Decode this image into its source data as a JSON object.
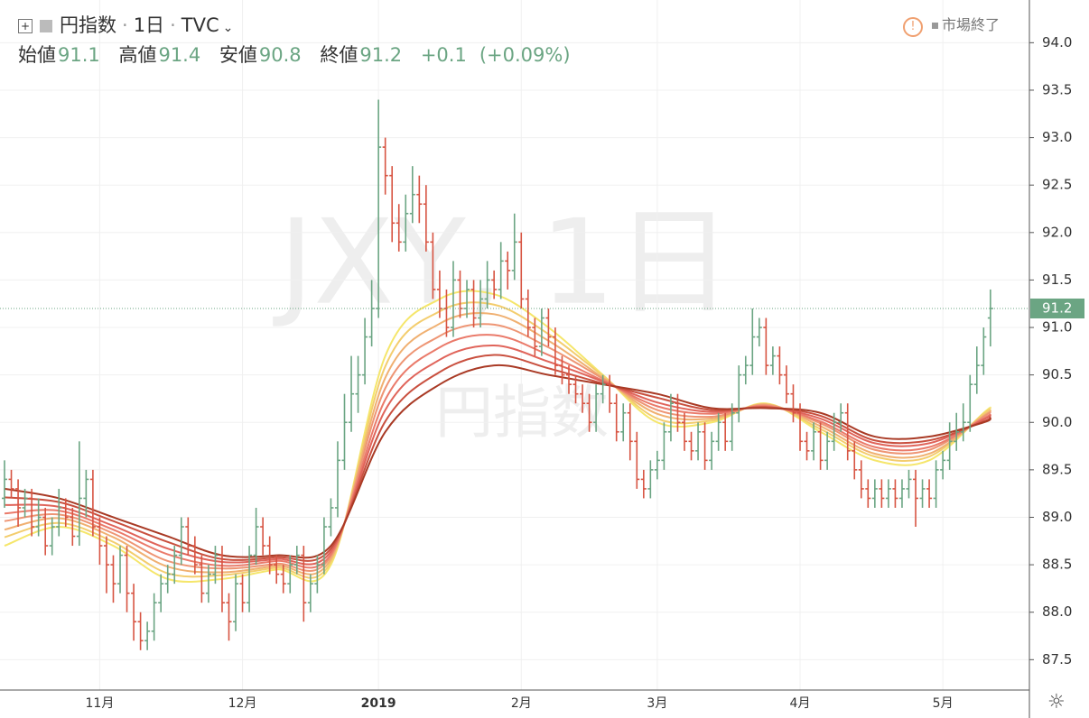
{
  "header": {
    "symbol": "円指数",
    "interval": "1日",
    "exchange": "TVC",
    "status": "市場終了",
    "open_label": "始値",
    "high_label": "高値",
    "low_label": "安値",
    "close_label": "終値",
    "change": "+0.1",
    "change_percent": "(+0.09%)"
  },
  "chart_data": {
    "type": "ohlc",
    "watermark": "JXY, 1日",
    "watermark_subtitle": "円指数",
    "up_color": "#6ba583",
    "down_color": "#d75442",
    "grid": true,
    "ylim": [
      87.18,
      94.45
    ],
    "yticks": [
      {
        "value": 87.5,
        "label": "87.5"
      },
      {
        "value": 88,
        "label": "88.0"
      },
      {
        "value": 88.5,
        "label": "88.5"
      },
      {
        "value": 89,
        "label": "89.0"
      },
      {
        "value": 89.5,
        "label": "89.5"
      },
      {
        "value": 90,
        "label": "90.0"
      },
      {
        "value": 90.5,
        "label": "90.5"
      },
      {
        "value": 91,
        "label": "91.0"
      },
      {
        "value": 91.5,
        "label": "91.5"
      },
      {
        "value": 92,
        "label": "92.0"
      },
      {
        "value": 92.5,
        "label": "92.5"
      },
      {
        "value": 93,
        "label": "93.0"
      },
      {
        "value": 93.5,
        "label": "93.5"
      },
      {
        "value": 94,
        "label": "94.0"
      }
    ],
    "categories": [
      null,
      null,
      null,
      null,
      null,
      null,
      null,
      null,
      null,
      null,
      null,
      null,
      null,
      null,
      "11月",
      null,
      null,
      null,
      null,
      null,
      null,
      null,
      null,
      null,
      null,
      null,
      null,
      null,
      null,
      null,
      null,
      null,
      null,
      null,
      null,
      "12月",
      null,
      null,
      null,
      null,
      null,
      null,
      null,
      null,
      null,
      null,
      null,
      null,
      null,
      null,
      null,
      null,
      null,
      null,
      null,
      "2019",
      null,
      null,
      null,
      null,
      null,
      null,
      null,
      null,
      null,
      null,
      null,
      null,
      null,
      null,
      null,
      null,
      null,
      null,
      null,
      null,
      "2月",
      null,
      null,
      null,
      null,
      null,
      null,
      null,
      null,
      null,
      null,
      null,
      null,
      null,
      null,
      null,
      null,
      null,
      null,
      null,
      "3月",
      null,
      null,
      null,
      null,
      null,
      null,
      null,
      null,
      null,
      null,
      null,
      null,
      null,
      null,
      null,
      null,
      null,
      null,
      null,
      null,
      "4月",
      null,
      null,
      null,
      null,
      null,
      null,
      null,
      null,
      null,
      null,
      null,
      null,
      null,
      null,
      null,
      null,
      null,
      null,
      null,
      null,
      "5月",
      null,
      null,
      null,
      null,
      null,
      null,
      null
    ],
    "ohlc": [
      [
        89.2,
        89.6,
        89.1,
        89.4
      ],
      [
        89.4,
        89.5,
        89.2,
        89.3
      ],
      [
        89.3,
        89.4,
        88.9,
        89.1
      ],
      [
        89.1,
        89.3,
        89.0,
        89.2
      ],
      [
        89.2,
        89.3,
        88.8,
        88.9
      ],
      [
        88.9,
        89.2,
        88.8,
        89.0
      ],
      [
        89.0,
        89.1,
        88.6,
        88.7
      ],
      [
        88.7,
        89.0,
        88.6,
        88.9
      ],
      [
        88.9,
        89.3,
        88.8,
        89.1
      ],
      [
        89.1,
        89.2,
        88.9,
        89.0
      ],
      [
        89.0,
        89.1,
        88.7,
        88.8
      ],
      [
        88.8,
        89.8,
        88.7,
        89.2
      ],
      [
        89.2,
        89.5,
        89.0,
        89.4
      ],
      [
        89.4,
        89.5,
        88.8,
        88.9
      ],
      [
        88.9,
        89.0,
        88.5,
        88.7
      ],
      [
        88.7,
        88.8,
        88.2,
        88.5
      ],
      [
        88.5,
        88.6,
        88.1,
        88.3
      ],
      [
        88.3,
        88.7,
        88.2,
        88.6
      ],
      [
        88.6,
        88.7,
        88.0,
        88.2
      ],
      [
        88.2,
        88.3,
        87.7,
        87.9
      ],
      [
        87.9,
        88.0,
        87.6,
        87.7
      ],
      [
        87.7,
        87.9,
        87.6,
        87.8
      ],
      [
        87.8,
        88.2,
        87.7,
        88.1
      ],
      [
        88.1,
        88.4,
        88.0,
        88.3
      ],
      [
        88.3,
        88.5,
        88.2,
        88.4
      ],
      [
        88.4,
        88.7,
        88.3,
        88.6
      ],
      [
        88.6,
        89.0,
        88.5,
        88.9
      ],
      [
        88.9,
        89.0,
        88.6,
        88.7
      ],
      [
        88.7,
        88.8,
        88.4,
        88.5
      ],
      [
        88.5,
        88.6,
        88.1,
        88.2
      ],
      [
        88.2,
        88.5,
        88.1,
        88.4
      ],
      [
        88.4,
        88.7,
        88.3,
        88.6
      ],
      [
        88.6,
        88.7,
        88.0,
        88.1
      ],
      [
        88.1,
        88.2,
        87.7,
        87.9
      ],
      [
        87.9,
        88.4,
        87.8,
        88.3
      ],
      [
        88.3,
        88.4,
        88.0,
        88.1
      ],
      [
        88.1,
        88.7,
        88.0,
        88.6
      ],
      [
        88.6,
        89.1,
        88.5,
        88.9
      ],
      [
        88.9,
        89.0,
        88.6,
        88.7
      ],
      [
        88.7,
        88.8,
        88.4,
        88.5
      ],
      [
        88.5,
        88.6,
        88.3,
        88.4
      ],
      [
        88.4,
        88.5,
        88.2,
        88.3
      ],
      [
        88.3,
        88.6,
        88.2,
        88.5
      ],
      [
        88.5,
        88.7,
        88.4,
        88.6
      ],
      [
        88.6,
        88.7,
        87.9,
        88.1
      ],
      [
        88.1,
        88.4,
        88.0,
        88.3
      ],
      [
        88.3,
        88.6,
        88.2,
        88.5
      ],
      [
        88.5,
        89.0,
        88.4,
        88.9
      ],
      [
        88.9,
        89.2,
        88.8,
        89.1
      ],
      [
        89.1,
        89.8,
        89.0,
        89.6
      ],
      [
        89.6,
        90.3,
        89.5,
        90.0
      ],
      [
        90.0,
        90.7,
        89.9,
        90.3
      ],
      [
        90.3,
        90.7,
        90.1,
        90.5
      ],
      [
        90.5,
        91.1,
        90.4,
        90.9
      ],
      [
        90.9,
        91.5,
        90.8,
        91.2
      ],
      [
        91.2,
        93.4,
        91.1,
        92.9
      ],
      [
        92.9,
        93.0,
        92.4,
        92.6
      ],
      [
        92.6,
        92.7,
        91.9,
        92.1
      ],
      [
        92.1,
        92.3,
        91.8,
        91.9
      ],
      [
        91.9,
        92.4,
        91.8,
        92.2
      ],
      [
        92.2,
        92.7,
        92.1,
        92.4
      ],
      [
        92.4,
        92.6,
        92.1,
        92.3
      ],
      [
        92.3,
        92.5,
        91.8,
        91.9
      ],
      [
        91.9,
        92.0,
        91.3,
        91.4
      ],
      [
        91.4,
        91.6,
        91.1,
        91.2
      ],
      [
        91.2,
        91.4,
        90.9,
        91.0
      ],
      [
        91.0,
        91.7,
        90.9,
        91.5
      ],
      [
        91.5,
        91.6,
        91.1,
        91.2
      ],
      [
        91.2,
        91.5,
        91.1,
        91.4
      ],
      [
        91.4,
        91.5,
        91.0,
        91.1
      ],
      [
        91.1,
        91.5,
        91.0,
        91.3
      ],
      [
        91.3,
        91.7,
        91.2,
        91.5
      ],
      [
        91.5,
        91.6,
        91.3,
        91.4
      ],
      [
        91.4,
        91.9,
        91.3,
        91.7
      ],
      [
        91.7,
        91.8,
        91.4,
        91.6
      ],
      [
        91.6,
        92.2,
        91.5,
        91.9
      ],
      [
        91.9,
        92.0,
        91.2,
        91.3
      ],
      [
        91.3,
        91.4,
        90.9,
        91.0
      ],
      [
        91.0,
        91.1,
        90.7,
        90.8
      ],
      [
        90.8,
        91.2,
        90.7,
        91.1
      ],
      [
        91.1,
        91.2,
        90.8,
        90.9
      ],
      [
        90.9,
        91.0,
        90.5,
        90.6
      ],
      [
        90.6,
        90.7,
        90.4,
        90.5
      ],
      [
        90.5,
        90.6,
        90.3,
        90.4
      ],
      [
        90.4,
        90.5,
        90.2,
        90.3
      ],
      [
        90.3,
        90.4,
        90.1,
        90.2
      ],
      [
        90.2,
        90.3,
        89.9,
        90.0
      ],
      [
        90.0,
        90.4,
        89.9,
        90.3
      ],
      [
        90.3,
        90.5,
        90.2,
        90.4
      ],
      [
        90.4,
        90.5,
        90.1,
        90.2
      ],
      [
        90.2,
        90.3,
        89.8,
        89.9
      ],
      [
        89.9,
        90.2,
        89.8,
        90.1
      ],
      [
        90.1,
        90.2,
        89.6,
        89.8
      ],
      [
        89.8,
        89.9,
        89.3,
        89.4
      ],
      [
        89.4,
        89.5,
        89.2,
        89.3
      ],
      [
        89.3,
        89.6,
        89.2,
        89.5
      ],
      [
        89.5,
        89.7,
        89.4,
        89.6
      ],
      [
        89.6,
        90.0,
        89.5,
        89.9
      ],
      [
        89.9,
        90.3,
        89.8,
        90.2
      ],
      [
        90.2,
        90.3,
        89.9,
        90.0
      ],
      [
        90.0,
        90.1,
        89.7,
        89.8
      ],
      [
        89.8,
        89.9,
        89.6,
        89.7
      ],
      [
        89.7,
        90.0,
        89.6,
        89.9
      ],
      [
        89.9,
        90.0,
        89.5,
        89.6
      ],
      [
        89.6,
        89.9,
        89.5,
        89.8
      ],
      [
        89.8,
        90.1,
        89.7,
        90.0
      ],
      [
        90.0,
        90.1,
        89.7,
        89.8
      ],
      [
        89.8,
        90.2,
        89.7,
        90.1
      ],
      [
        90.1,
        90.6,
        90.0,
        90.5
      ],
      [
        90.5,
        90.7,
        90.4,
        90.6
      ],
      [
        90.6,
        91.2,
        90.5,
        90.9
      ],
      [
        90.9,
        91.1,
        90.8,
        91.0
      ],
      [
        91.0,
        91.1,
        90.5,
        90.6
      ],
      [
        90.6,
        90.8,
        90.5,
        90.7
      ],
      [
        90.7,
        90.8,
        90.4,
        90.5
      ],
      [
        90.5,
        90.6,
        90.2,
        90.3
      ],
      [
        90.3,
        90.4,
        90.0,
        90.1
      ],
      [
        90.1,
        90.2,
        89.7,
        89.8
      ],
      [
        89.8,
        89.9,
        89.6,
        89.7
      ],
      [
        89.7,
        90.0,
        89.6,
        89.9
      ],
      [
        89.9,
        90.0,
        89.5,
        89.6
      ],
      [
        89.6,
        89.9,
        89.5,
        89.8
      ],
      [
        89.8,
        90.1,
        89.7,
        90.0
      ],
      [
        90.0,
        90.2,
        89.9,
        90.1
      ],
      [
        90.1,
        90.2,
        89.6,
        89.7
      ],
      [
        89.7,
        89.8,
        89.4,
        89.5
      ],
      [
        89.5,
        89.6,
        89.2,
        89.3
      ],
      [
        89.3,
        89.4,
        89.1,
        89.2
      ],
      [
        89.2,
        89.4,
        89.1,
        89.3
      ],
      [
        89.3,
        89.4,
        89.1,
        89.2
      ],
      [
        89.2,
        89.4,
        89.1,
        89.3
      ],
      [
        89.3,
        89.4,
        89.1,
        89.2
      ],
      [
        89.2,
        89.4,
        89.1,
        89.3
      ],
      [
        89.3,
        89.5,
        89.2,
        89.4
      ],
      [
        89.4,
        89.5,
        88.9,
        89.2
      ],
      [
        89.2,
        89.4,
        89.1,
        89.3
      ],
      [
        89.3,
        89.4,
        89.1,
        89.2
      ],
      [
        89.2,
        89.6,
        89.1,
        89.5
      ],
      [
        89.5,
        89.7,
        89.4,
        89.6
      ],
      [
        89.6,
        90.0,
        89.5,
        89.8
      ],
      [
        89.8,
        90.1,
        89.7,
        89.9
      ],
      [
        89.9,
        90.2,
        89.8,
        90.0
      ],
      [
        90.0,
        90.5,
        89.9,
        90.4
      ],
      [
        90.4,
        90.8,
        90.3,
        90.6
      ],
      [
        90.6,
        91.0,
        90.5,
        90.9
      ],
      [
        91.1,
        91.4,
        90.8,
        91.2
      ]
    ],
    "ribbon": {
      "x": [
        0,
        8,
        16,
        24,
        32,
        40,
        48,
        56,
        64,
        72,
        80,
        88,
        96,
        104,
        112,
        120,
        128,
        136,
        144,
        145
      ],
      "series": [
        {
          "color": "#f5e66b",
          "values": [
            88.7,
            88.9,
            88.7,
            88.35,
            88.35,
            88.45,
            88.5,
            90.7,
            91.3,
            91.35,
            91.0,
            90.5,
            90.0,
            90.0,
            90.2,
            89.9,
            89.6,
            89.6,
            90.1,
            90.15
          ]
        },
        {
          "color": "#f3cd6e",
          "values": [
            88.79,
            88.94,
            88.74,
            88.41,
            88.39,
            88.47,
            88.53,
            90.59,
            91.17,
            91.24,
            90.93,
            90.49,
            90.04,
            90.02,
            90.19,
            89.93,
            89.64,
            89.64,
            90.09,
            90.14
          ]
        },
        {
          "color": "#f0b071",
          "values": [
            88.87,
            88.99,
            88.79,
            88.48,
            88.42,
            88.49,
            88.56,
            90.47,
            91.04,
            91.14,
            90.86,
            90.47,
            90.09,
            90.04,
            90.19,
            89.96,
            89.67,
            89.67,
            90.07,
            90.12
          ]
        },
        {
          "color": "#ee9574",
          "values": [
            88.96,
            89.03,
            88.83,
            88.54,
            88.46,
            88.51,
            88.59,
            90.36,
            90.91,
            91.03,
            90.79,
            90.46,
            90.13,
            90.06,
            90.18,
            89.99,
            89.71,
            89.71,
            90.06,
            90.11
          ]
        },
        {
          "color": "#ea7a6a",
          "values": [
            89.04,
            89.07,
            88.87,
            88.61,
            88.49,
            88.54,
            88.61,
            90.24,
            90.79,
            90.92,
            90.71,
            90.44,
            90.17,
            90.09,
            90.17,
            90.01,
            89.74,
            89.74,
            90.04,
            90.09
          ]
        },
        {
          "color": "#e0645a",
          "values": [
            89.13,
            89.11,
            88.91,
            88.67,
            88.53,
            88.56,
            88.64,
            90.13,
            90.66,
            90.81,
            90.64,
            90.43,
            90.21,
            90.11,
            90.16,
            90.04,
            89.78,
            89.78,
            90.03,
            90.08
          ]
        },
        {
          "color": "#c9503f",
          "values": [
            89.21,
            89.16,
            88.96,
            88.74,
            88.56,
            88.58,
            88.67,
            90.01,
            90.53,
            90.71,
            90.57,
            90.41,
            90.26,
            90.13,
            90.16,
            90.07,
            89.81,
            89.81,
            90.01,
            90.06
          ]
        },
        {
          "color": "#a93a25",
          "values": [
            89.3,
            89.2,
            89.0,
            88.8,
            88.6,
            88.6,
            88.7,
            89.9,
            90.4,
            90.6,
            90.5,
            90.4,
            90.3,
            90.15,
            90.15,
            90.1,
            89.85,
            89.85,
            90.0,
            90.05
          ]
        }
      ]
    }
  }
}
